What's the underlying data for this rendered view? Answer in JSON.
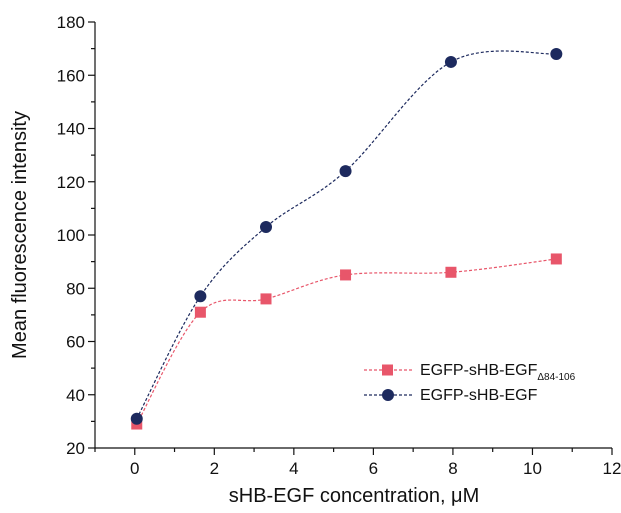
{
  "chart_data": {
    "type": "line",
    "title": "",
    "xlabel": "sHB-EGF concentration, μM",
    "ylabel": "Mean fluorescence intensity",
    "xlim": [
      -1,
      12
    ],
    "ylim": [
      20,
      180
    ],
    "xticks": [
      0,
      2,
      4,
      6,
      8,
      10,
      12
    ],
    "yticks": [
      20,
      40,
      60,
      80,
      100,
      120,
      140,
      160,
      180
    ],
    "grid": false,
    "legend_position": "lower-right",
    "series": [
      {
        "name": "EGFP-sHB-EGF",
        "name_subscript": "Δ84-106",
        "color": "#e8566a",
        "marker": "square",
        "x": [
          0.05,
          1.65,
          3.3,
          5.3,
          7.95,
          10.6
        ],
        "y": [
          29,
          71,
          76,
          85,
          86,
          91
        ]
      },
      {
        "name": "EGFP-sHB-EGF",
        "color": "#1d2a5e",
        "marker": "circle",
        "x": [
          0.05,
          1.65,
          3.3,
          5.3,
          7.95,
          10.6
        ],
        "y": [
          31,
          77,
          103,
          124,
          165,
          168
        ]
      }
    ]
  }
}
